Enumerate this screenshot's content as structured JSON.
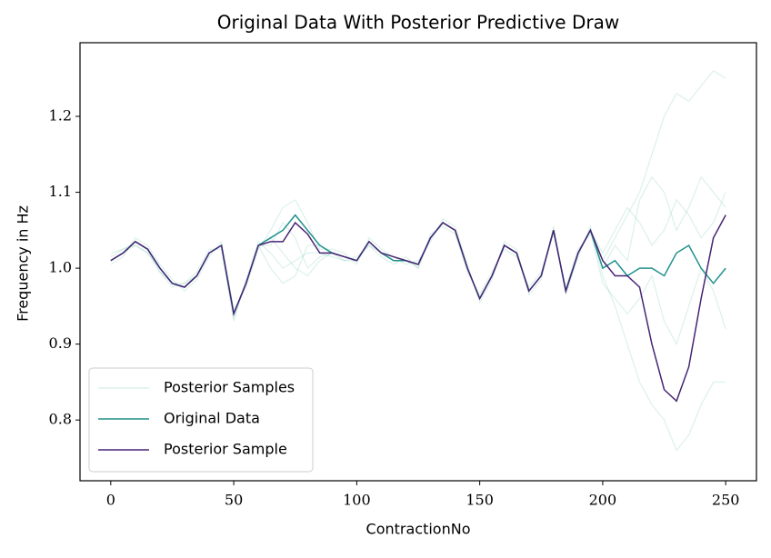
{
  "chart_data": {
    "type": "line",
    "title": "Original Data With Posterior Predictive Draw",
    "x_label": "ContractionNo",
    "y_label": "Frequency in Hz",
    "x": [
      0,
      5,
      10,
      15,
      20,
      25,
      30,
      35,
      40,
      45,
      50,
      55,
      60,
      65,
      70,
      75,
      80,
      85,
      90,
      95,
      100,
      105,
      110,
      115,
      120,
      125,
      130,
      135,
      140,
      145,
      150,
      155,
      160,
      165,
      170,
      175,
      180,
      185,
      190,
      195,
      200,
      205,
      210,
      215,
      220,
      225,
      230,
      235,
      240,
      245,
      250
    ],
    "posterior_samples": {
      "name": "Posterior Samples",
      "color": "#3bb08f",
      "draws": [
        [
          1.015,
          1.025,
          1.03,
          1.02,
          0.995,
          0.975,
          0.98,
          0.995,
          1.025,
          1.025,
          0.93,
          0.985,
          1.035,
          1.02,
          1.0,
          1.01,
          1.02,
          1.02,
          1.015,
          1.01,
          1.015,
          1.03,
          1.015,
          1.005,
          1.015,
          1.0,
          1.045,
          1.055,
          1.045,
          0.995,
          0.965,
          0.995,
          1.025,
          1.015,
          0.975,
          0.995,
          1.045,
          0.975,
          1.025,
          1.045,
          1.01,
          1.04,
          1.07,
          1.1,
          1.15,
          1.2,
          1.23,
          1.22,
          1.24,
          1.26,
          1.25
        ],
        [
          1.005,
          1.015,
          1.04,
          1.03,
          1.005,
          0.985,
          0.97,
          0.985,
          1.015,
          1.035,
          0.945,
          0.975,
          1.025,
          1.05,
          1.08,
          1.09,
          1.06,
          1.025,
          1.025,
          1.02,
          1.005,
          1.04,
          1.025,
          1.015,
          1.005,
          1.01,
          1.035,
          1.065,
          1.055,
          1.005,
          0.955,
          0.985,
          1.035,
          1.025,
          0.965,
          0.985,
          1.055,
          0.965,
          1.015,
          1.055,
          0.99,
          0.95,
          0.9,
          0.85,
          0.82,
          0.8,
          0.76,
          0.78,
          0.82,
          0.85,
          0.85
        ],
        [
          1.01,
          1.02,
          1.03,
          1.02,
          1.0,
          0.98,
          0.98,
          0.99,
          1.02,
          1.03,
          0.94,
          0.98,
          1.03,
          1.0,
          0.98,
          0.99,
          1.03,
          1.03,
          1.02,
          1.01,
          1.01,
          1.03,
          1.02,
          1.01,
          1.01,
          1.0,
          1.04,
          1.06,
          1.05,
          1.0,
          0.96,
          0.99,
          1.03,
          1.02,
          0.97,
          0.99,
          1.05,
          0.97,
          1.02,
          1.05,
          1.02,
          1.05,
          1.08,
          1.06,
          1.03,
          1.05,
          1.09,
          1.07,
          1.04,
          1.06,
          1.1
        ],
        [
          1.02,
          1.025,
          1.035,
          1.025,
          0.995,
          0.98,
          0.975,
          0.99,
          1.02,
          1.03,
          0.935,
          0.98,
          1.03,
          1.03,
          1.06,
          1.04,
          1.0,
          1.015,
          1.02,
          1.015,
          1.01,
          1.035,
          1.02,
          1.01,
          1.01,
          1.005,
          1.04,
          1.06,
          1.05,
          1.0,
          0.96,
          0.99,
          1.03,
          1.02,
          0.97,
          0.99,
          1.05,
          0.97,
          1.02,
          1.05,
          0.98,
          0.96,
          0.94,
          0.96,
          0.99,
          0.93,
          0.9,
          0.95,
          1.0,
          0.97,
          0.92
        ],
        [
          1.01,
          1.02,
          1.035,
          1.025,
          1.0,
          0.98,
          0.975,
          0.99,
          1.02,
          1.03,
          0.94,
          0.98,
          1.03,
          1.04,
          1.02,
          1.0,
          0.99,
          1.01,
          1.02,
          1.015,
          1.01,
          1.035,
          1.02,
          1.01,
          1.01,
          1.005,
          1.04,
          1.06,
          1.05,
          1.0,
          0.96,
          0.99,
          1.03,
          1.02,
          0.97,
          0.99,
          1.05,
          0.97,
          1.02,
          1.05,
          1.0,
          1.03,
          1.01,
          1.09,
          1.12,
          1.1,
          1.05,
          1.08,
          1.12,
          1.1,
          1.08
        ]
      ]
    },
    "series": [
      {
        "name": "Original Data",
        "color": "#21918c",
        "values": [
          1.01,
          1.02,
          1.035,
          1.025,
          1.0,
          0.98,
          0.975,
          0.99,
          1.02,
          1.03,
          0.94,
          0.98,
          1.03,
          1.04,
          1.05,
          1.07,
          1.05,
          1.03,
          1.02,
          1.015,
          1.01,
          1.035,
          1.02,
          1.01,
          1.01,
          1.005,
          1.04,
          1.06,
          1.05,
          1.0,
          0.96,
          0.99,
          1.03,
          1.02,
          0.97,
          0.99,
          1.05,
          0.97,
          1.02,
          1.05,
          1.0,
          1.01,
          0.99,
          1.0,
          1.0,
          0.99,
          1.02,
          1.03,
          1.0,
          0.98,
          1.0
        ]
      },
      {
        "name": "Posterior Sample",
        "color": "#482475",
        "values": [
          1.01,
          1.02,
          1.035,
          1.025,
          1.0,
          0.98,
          0.975,
          0.99,
          1.02,
          1.03,
          0.94,
          0.98,
          1.03,
          1.035,
          1.035,
          1.06,
          1.045,
          1.02,
          1.02,
          1.015,
          1.01,
          1.035,
          1.02,
          1.015,
          1.01,
          1.005,
          1.04,
          1.06,
          1.05,
          1.0,
          0.96,
          0.99,
          1.03,
          1.02,
          0.97,
          0.99,
          1.05,
          0.97,
          1.02,
          1.05,
          1.01,
          0.99,
          0.99,
          0.975,
          0.9,
          0.84,
          0.825,
          0.87,
          0.96,
          1.04,
          1.07
        ]
      }
    ],
    "xlim": [
      -12.5,
      262.5
    ],
    "xticks": [
      0,
      50,
      100,
      150,
      200,
      250
    ],
    "ylim": [
      0.72,
      1.297
    ],
    "yticks": [
      0.8,
      0.9,
      {
        "value": 1.0,
        "label": "1.0"
      },
      1.1,
      1.2
    ],
    "legend": "lower left"
  }
}
